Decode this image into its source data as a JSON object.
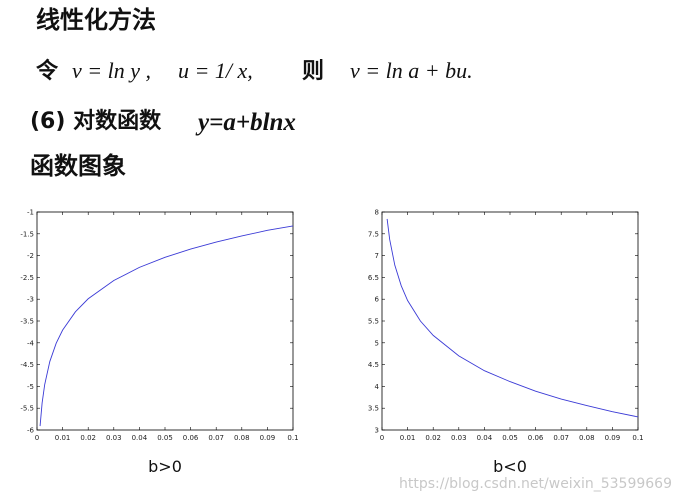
{
  "heading": "线性化方法",
  "formula": {
    "let": "令",
    "part1": "v = ln y ,",
    "part2": "u = 1/ x,",
    "then": "则",
    "part3": "v = ln a + bu."
  },
  "section": {
    "number": "(6) 对数函数",
    "equation": "y=a+blnx"
  },
  "subheading": "函数图象",
  "watermark": "https://blog.csdn.net/weixin_53599669",
  "chart_data": [
    {
      "type": "line",
      "xlabel": "b>0",
      "color": "#3b3bd6",
      "x": [
        0.0012,
        0.002,
        0.003,
        0.005,
        0.0075,
        0.01,
        0.015,
        0.02,
        0.03,
        0.04,
        0.05,
        0.06,
        0.07,
        0.08,
        0.09,
        0.1
      ],
      "values": [
        -5.91,
        -5.38,
        -4.96,
        -4.43,
        -4.01,
        -3.71,
        -3.29,
        -2.99,
        -2.57,
        -2.27,
        -2.04,
        -1.85,
        -1.69,
        -1.55,
        -1.42,
        -1.32
      ],
      "xlim": [
        0,
        0.1
      ],
      "ylim": [
        -6,
        -1
      ],
      "xticks": [
        0,
        0.01,
        0.02,
        0.03,
        0.04,
        0.05,
        0.06,
        0.07,
        0.08,
        0.09,
        0.1
      ],
      "yticks": [
        -6,
        -5.5,
        -5,
        -4.5,
        -4,
        -3.5,
        -3,
        -2.5,
        -2,
        -1.5,
        -1
      ]
    },
    {
      "type": "line",
      "xlabel": "b<0",
      "color": "#3b3bd6",
      "x": [
        0.002,
        0.003,
        0.005,
        0.0075,
        0.01,
        0.015,
        0.02,
        0.03,
        0.04,
        0.05,
        0.06,
        0.07,
        0.08,
        0.09,
        0.1
      ],
      "values": [
        7.84,
        7.37,
        6.78,
        6.31,
        5.97,
        5.5,
        5.17,
        4.7,
        4.36,
        4.11,
        3.89,
        3.71,
        3.56,
        3.42,
        3.3
      ],
      "xlim": [
        0,
        0.1
      ],
      "ylim": [
        3,
        8
      ],
      "xticks": [
        0,
        0.01,
        0.02,
        0.03,
        0.04,
        0.05,
        0.06,
        0.07,
        0.08,
        0.09,
        0.1
      ],
      "yticks": [
        3,
        3.5,
        4,
        4.5,
        5,
        5.5,
        6,
        6.5,
        7,
        7.5,
        8
      ]
    }
  ]
}
